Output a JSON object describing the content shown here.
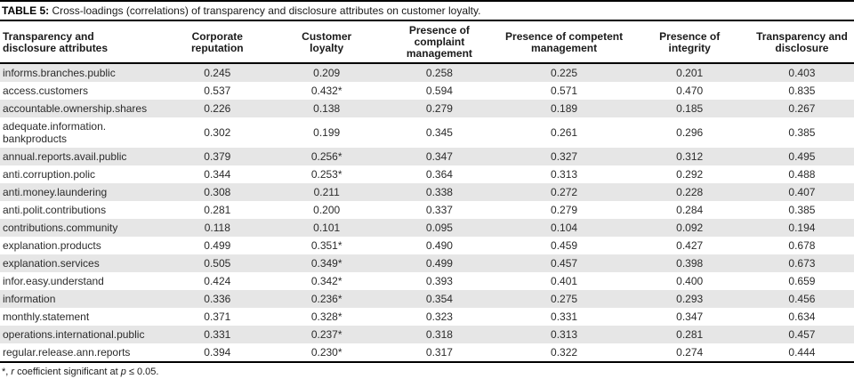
{
  "title": {
    "label": "TABLE 5:",
    "caption": "Cross-loadings (correlations) of transparency and disclosure attributes on customer loyalty."
  },
  "table": {
    "columns": [
      {
        "line1": "Transparency and",
        "line2": "disclosure attributes"
      },
      {
        "line1": "Corporate",
        "line2": "reputation"
      },
      {
        "line1": "Customer",
        "line2": "loyalty"
      },
      {
        "line1": "Presence of complaint",
        "line2": "management"
      },
      {
        "line1": "Presence of competent",
        "line2": "management"
      },
      {
        "line1": "Presence of",
        "line2": "integrity"
      },
      {
        "line1": "Transparency and",
        "line2": "disclosure"
      }
    ],
    "rows": [
      {
        "attribute": "informs.branches.public",
        "values": [
          "0.245",
          "0.209",
          "0.258",
          "0.225",
          "0.201",
          "0.403"
        ]
      },
      {
        "attribute": "access.customers",
        "values": [
          "0.537",
          "0.432*",
          "0.594",
          "0.571",
          "0.470",
          "0.835"
        ]
      },
      {
        "attribute": "accountable.ownership.shares",
        "values": [
          "0.226",
          "0.138",
          "0.279",
          "0.189",
          "0.185",
          "0.267"
        ]
      },
      {
        "attribute": "adequate.information.​bankproducts",
        "values": [
          "0.302",
          "0.199",
          "0.345",
          "0.261",
          "0.296",
          "0.385"
        ]
      },
      {
        "attribute": "annual.reports.avail.public",
        "values": [
          "0.379",
          "0.256*",
          "0.347",
          "0.327",
          "0.312",
          "0.495"
        ]
      },
      {
        "attribute": "anti.corruption.polic",
        "values": [
          "0.344",
          "0.253*",
          "0.364",
          "0.313",
          "0.292",
          "0.488"
        ]
      },
      {
        "attribute": "anti.money.laundering",
        "values": [
          "0.308",
          "0.211",
          "0.338",
          "0.272",
          "0.228",
          "0.407"
        ]
      },
      {
        "attribute": "anti.polit.contributions",
        "values": [
          "0.281",
          "0.200",
          "0.337",
          "0.279",
          "0.284",
          "0.385"
        ]
      },
      {
        "attribute": "contributions.community",
        "values": [
          "0.118",
          "0.101",
          "0.095",
          "0.104",
          "0.092",
          "0.194"
        ]
      },
      {
        "attribute": "explanation.products",
        "values": [
          "0.499",
          "0.351*",
          "0.490",
          "0.459",
          "0.427",
          "0.678"
        ]
      },
      {
        "attribute": "explanation.services",
        "values": [
          "0.505",
          "0.349*",
          "0.499",
          "0.457",
          "0.398",
          "0.673"
        ]
      },
      {
        "attribute": "infor.easy.understand",
        "values": [
          "0.424",
          "0.342*",
          "0.393",
          "0.401",
          "0.400",
          "0.659"
        ]
      },
      {
        "attribute": "information",
        "values": [
          "0.336",
          "0.236*",
          "0.354",
          "0.275",
          "0.293",
          "0.456"
        ]
      },
      {
        "attribute": "monthly.statement",
        "values": [
          "0.371",
          "0.328*",
          "0.323",
          "0.331",
          "0.347",
          "0.634"
        ]
      },
      {
        "attribute": "operations.international.public",
        "values": [
          "0.331",
          "0.237*",
          "0.318",
          "0.313",
          "0.281",
          "0.457"
        ]
      },
      {
        "attribute": "regular.release.ann.reports",
        "values": [
          "0.394",
          "0.230*",
          "0.317",
          "0.322",
          "0.274",
          "0.444"
        ]
      }
    ]
  },
  "footnote": {
    "star": "*, ",
    "r_symbol": "r",
    "text": " coefficient significant at ",
    "p_symbol": "p",
    "condition": " ≤ 0.05."
  },
  "colors": {
    "stripe": "#e6e6e6",
    "rule": "#000000",
    "text": "#262626"
  }
}
